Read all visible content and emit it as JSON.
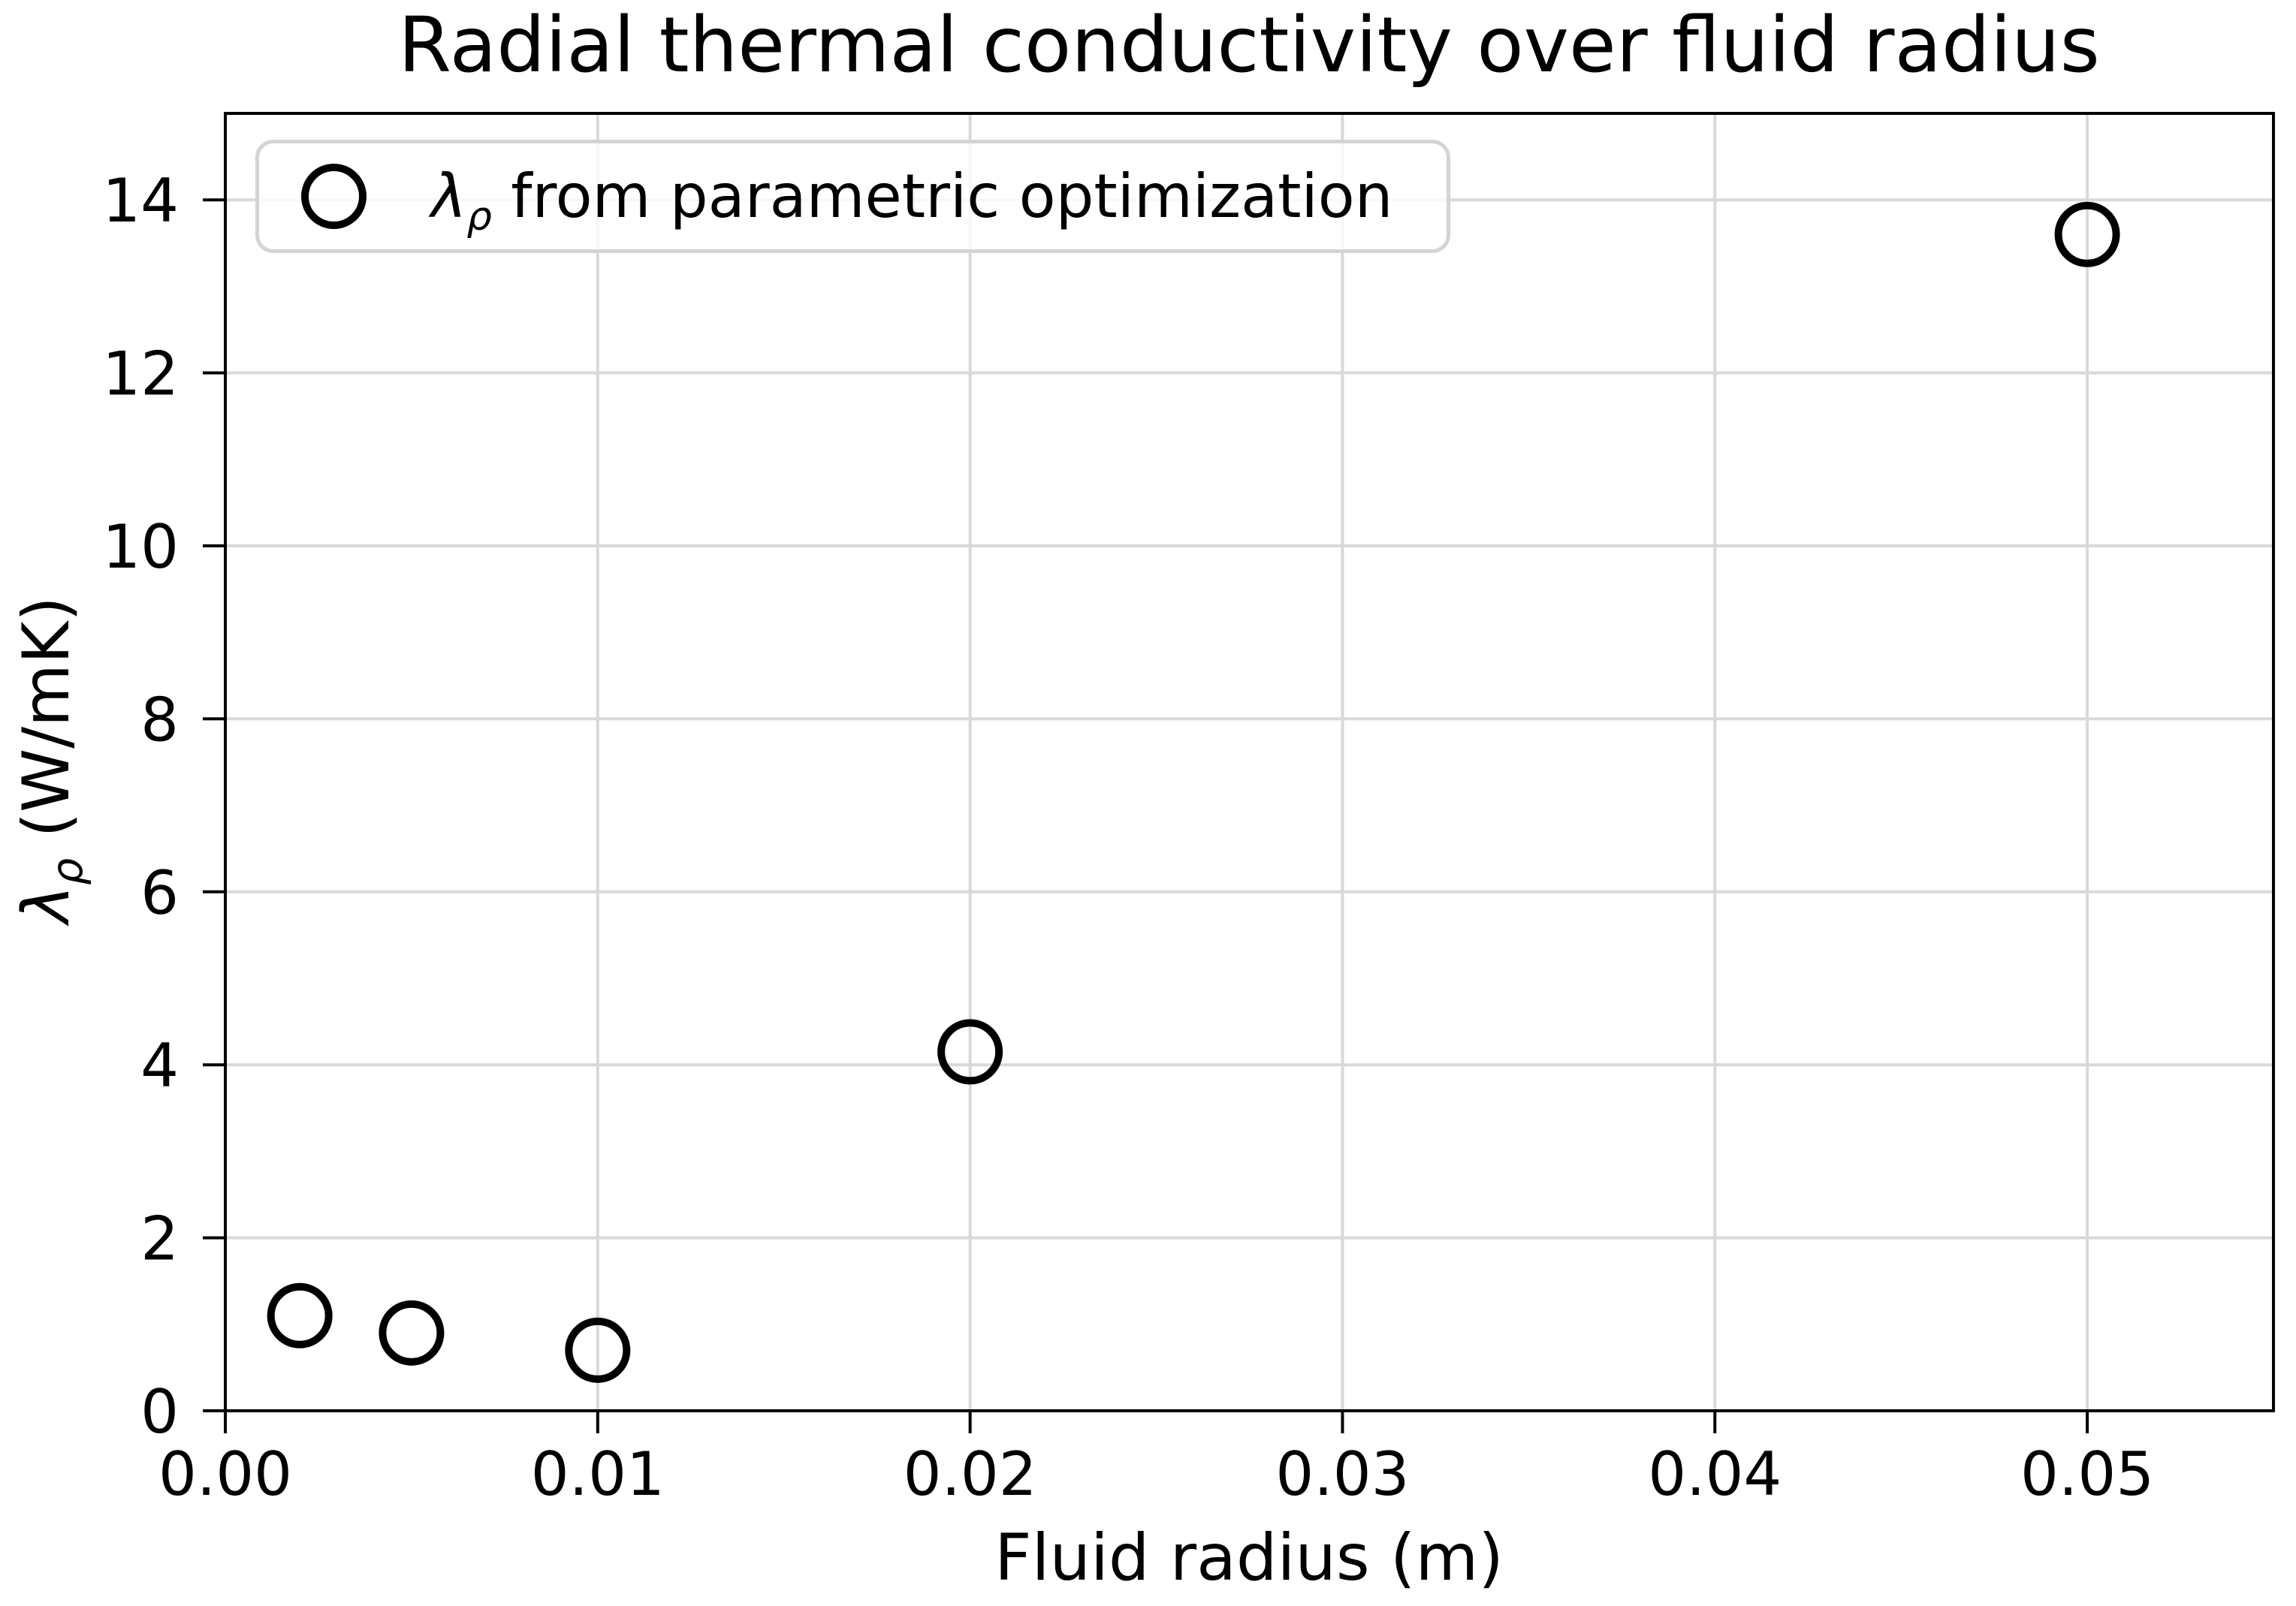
{
  "chart_data": {
    "type": "scatter",
    "title": "Radial thermal conductivity over fluid radius",
    "xlabel": "Fluid radius (m)",
    "ylabel": "λ_ρ (W/mK)",
    "ylabel_parts": {
      "symbol": "λ",
      "subscript": "ρ",
      "rest": " (W/mK)"
    },
    "legend": {
      "position": "upper left",
      "entries": [
        {
          "label": "λ_ρ from parametric optimization",
          "label_parts": {
            "symbol": "λ",
            "subscript": "ρ",
            "rest": " from parametric optimization"
          },
          "marker": "open-circle"
        }
      ]
    },
    "series": [
      {
        "name": "λ_ρ from parametric optimization",
        "x": [
          0.002,
          0.005,
          0.01,
          0.02,
          0.05
        ],
        "y": [
          1.1,
          0.9,
          0.7,
          4.15,
          13.6
        ]
      }
    ],
    "xlim": [
      0,
      0.055
    ],
    "ylim": [
      0,
      15
    ],
    "x_ticks": {
      "values": [
        0,
        0.01,
        0.02,
        0.03,
        0.04,
        0.05
      ],
      "labels": [
        "0.00",
        "0.01",
        "0.02",
        "0.03",
        "0.04",
        "0.05"
      ]
    },
    "y_ticks": {
      "values": [
        0,
        2,
        4,
        6,
        8,
        10,
        12,
        14
      ],
      "labels": [
        "0",
        "2",
        "4",
        "6",
        "8",
        "10",
        "12",
        "14"
      ]
    },
    "grid": true,
    "colors": {
      "marker_edge": "#000000",
      "grid": "#d9d9d9",
      "spine": "#000000",
      "text": "#000000",
      "legend_border": "#d4d4d4",
      "background": "#ffffff"
    }
  }
}
